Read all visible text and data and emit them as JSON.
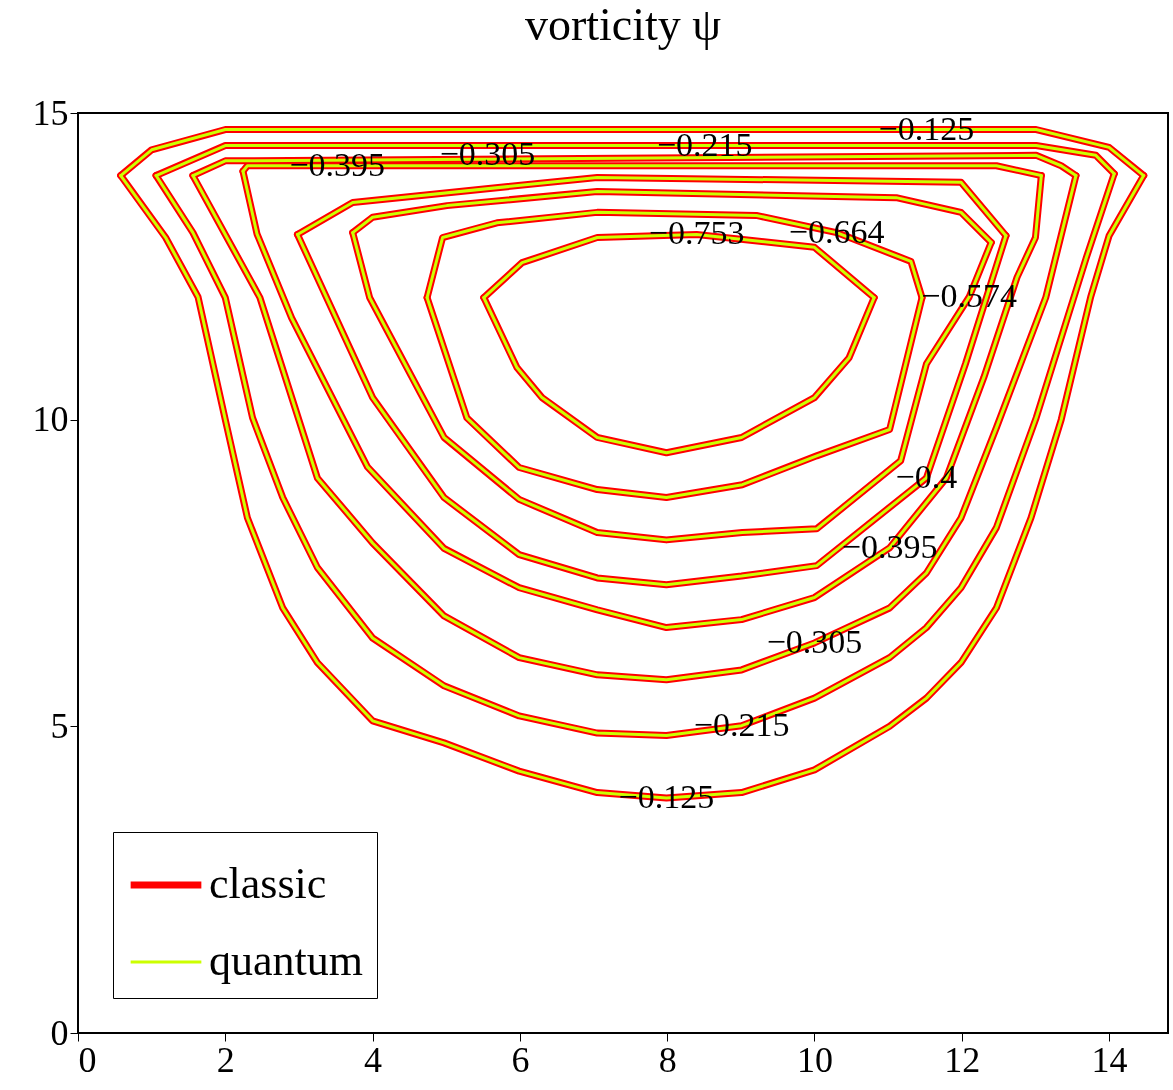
{
  "chart_data": {
    "type": "line",
    "title": "vorticity ψ",
    "xlim": [
      0,
      14.8
    ],
    "xticks": [
      0,
      2,
      4,
      6,
      8,
      10,
      12,
      14
    ],
    "ylim": [
      0,
      15
    ],
    "yticks": [
      0,
      5,
      10,
      15
    ],
    "grid": false,
    "legend": "bottom left",
    "line_style": "solid",
    "marker": "none",
    "series": [
      {
        "name": "classic",
        "color": "#ff0000",
        "x": [
          0.58,
          1.0,
          2.0,
          13.01,
          14.0,
          14.47
        ],
        "values": [
          13.98,
          14.4,
          14.73,
          14.73,
          14.44,
          13.98
        ]
      },
      {
        "color": "#ff0000",
        "x": [
          0.58,
          1.19,
          1.63,
          2.0,
          2.3,
          2.78,
          3.25,
          4.0,
          4.97,
          5.99,
          7.05,
          7.99,
          9.01,
          10.0,
          11.02,
          11.52,
          11.99,
          12.47,
          12.94,
          13.35,
          13.75,
          14.0,
          14.47
        ],
        "values": [
          13.98,
          12.97,
          12.0,
          10.0,
          8.4,
          6.93,
          6.04,
          5.09,
          4.73,
          4.27,
          3.92,
          3.83,
          3.92,
          4.29,
          5.0,
          5.46,
          6.04,
          6.93,
          8.4,
          10.0,
          12.0,
          13.0,
          13.98
        ]
      },
      {
        "color": "#ff0000",
        "x": [
          1.06,
          2.0,
          13.01,
          13.82,
          14.07
        ],
        "values": [
          13.98,
          14.47,
          14.47,
          14.31,
          14.01
        ]
      },
      {
        "color": "#ff0000",
        "x": [
          1.06,
          1.56,
          2.0,
          2.37,
          2.78,
          3.25,
          4.0,
          4.97,
          5.99,
          7.05,
          7.99,
          9.01,
          10.0,
          11.02,
          11.52,
          11.99,
          12.47,
          13.01,
          13.69,
          14.07
        ],
        "values": [
          13.98,
          13.05,
          11.99,
          10.03,
          8.73,
          7.59,
          6.44,
          5.66,
          5.17,
          4.89,
          4.85,
          5.01,
          5.46,
          6.12,
          6.61,
          7.26,
          8.24,
          10.03,
          12.64,
          14.01
        ]
      },
      {
        "color": "#ff0000",
        "x": [
          1.56,
          2.0,
          13.01,
          13.35,
          13.55
        ],
        "values": [
          13.98,
          14.22,
          14.31,
          14.14,
          13.98
        ]
      },
      {
        "color": "#ff0000",
        "x": [
          1.56,
          2.47,
          3.25,
          4.0,
          4.97,
          5.99,
          7.05,
          7.99,
          9.01,
          10.0,
          11.02,
          11.52,
          11.99,
          12.47,
          13.14,
          13.55
        ],
        "values": [
          13.98,
          11.99,
          9.05,
          7.99,
          6.8,
          6.12,
          5.84,
          5.76,
          5.92,
          6.36,
          6.93,
          7.5,
          8.4,
          9.87,
          11.99,
          13.98
        ]
      },
      {
        "color": "#ff0000",
        "x": [
          2.24,
          2.3,
          12.47,
          13.08
        ],
        "values": [
          14.05,
          14.14,
          14.14,
          13.98
        ]
      },
      {
        "color": "#ff0000",
        "x": [
          2.24,
          2.43,
          2.9,
          3.93,
          4.97,
          5.99,
          7.05,
          7.99,
          9.01,
          10.0,
          11.02,
          11.79,
          12.3,
          12.75,
          13.0,
          13.08
        ],
        "values": [
          14.05,
          13.03,
          11.66,
          9.23,
          7.9,
          7.26,
          6.9,
          6.61,
          6.74,
          7.1,
          7.91,
          9.05,
          10.69,
          12.32,
          12.97,
          13.98
        ]
      },
      {
        "color": "#ff0000",
        "x": [
          2.98,
          3.73,
          7.05,
          11.99,
          12.6
        ],
        "values": [
          13.02,
          13.54,
          13.95,
          13.87,
          13.0
        ]
      },
      {
        "color": "#ff0000",
        "x": [
          2.98,
          4.0,
          4.97,
          5.99,
          7.05,
          7.99,
          9.01,
          10.03,
          11.52,
          12.05,
          12.6
        ],
        "values": [
          13.02,
          10.36,
          8.73,
          7.8,
          7.42,
          7.31,
          7.45,
          7.62,
          9.05,
          10.91,
          13.0
        ]
      },
      {
        "color": "#ff0000",
        "x": [
          3.73,
          4.0,
          5.01,
          7.05,
          11.11,
          11.99,
          12.4
        ],
        "values": [
          13.05,
          13.3,
          13.49,
          13.72,
          13.62,
          13.38,
          12.89
        ]
      },
      {
        "color": "#ff0000",
        "x": [
          3.73,
          3.96,
          4.97,
          5.99,
          7.05,
          7.99,
          9.02,
          10.03,
          11.17,
          11.52,
          12.1,
          12.4
        ],
        "values": [
          13.05,
          11.99,
          9.71,
          8.7,
          8.16,
          8.04,
          8.16,
          8.22,
          9.33,
          10.91,
          12.0,
          12.89
        ]
      },
      {
        "color": "#ff0000",
        "x": [
          4.74,
          4.95,
          5.69,
          7.05,
          9.21,
          10.3,
          11.31,
          11.46
        ],
        "values": [
          11.99,
          12.97,
          13.21,
          13.38,
          13.33,
          13.05,
          12.58,
          11.99
        ]
      },
      {
        "color": "#ff0000",
        "x": [
          4.74,
          5.28,
          5.99,
          7.05,
          7.99,
          9.02,
          10.03,
          11.02,
          11.46
        ],
        "values": [
          11.99,
          10.03,
          9.22,
          8.86,
          8.73,
          8.94,
          9.41,
          9.84,
          11.99
        ]
      },
      {
        "color": "#ff0000",
        "x": [
          5.51,
          6.03,
          7.05,
          8.4,
          10.0,
          10.81
        ],
        "values": [
          11.99,
          12.56,
          12.97,
          13.02,
          12.81,
          11.99
        ]
      },
      {
        "color": "#ff0000",
        "x": [
          5.51,
          5.96,
          6.3,
          7.05,
          7.99,
          9.01,
          10.0,
          10.47,
          10.81
        ],
        "values": [
          11.99,
          10.85,
          10.36,
          9.71,
          9.46,
          9.71,
          10.36,
          11.01,
          11.99
        ]
      },
      {
        "name": "quantum",
        "color": "#ccff00",
        "x": [
          0.58,
          1.0,
          2.0,
          13.01,
          14.0,
          14.47
        ],
        "values": [
          13.98,
          14.4,
          14.73,
          14.73,
          14.44,
          13.98
        ]
      },
      {
        "color": "#ccff00",
        "x": [
          0.58,
          1.19,
          1.63,
          2.0,
          2.3,
          2.78,
          3.25,
          4.0,
          4.97,
          5.99,
          7.05,
          7.99,
          9.01,
          10.0,
          11.02,
          11.52,
          11.99,
          12.47,
          12.94,
          13.35,
          13.75,
          14.0,
          14.47
        ],
        "values": [
          13.98,
          12.97,
          12.0,
          10.0,
          8.4,
          6.93,
          6.04,
          5.09,
          4.73,
          4.27,
          3.92,
          3.83,
          3.92,
          4.29,
          5.0,
          5.46,
          6.04,
          6.93,
          8.4,
          10.0,
          12.0,
          13.0,
          13.98
        ]
      },
      {
        "color": "#ccff00",
        "x": [
          1.06,
          2.0,
          13.01,
          13.82,
          14.07
        ],
        "values": [
          13.98,
          14.47,
          14.47,
          14.31,
          14.01
        ]
      },
      {
        "color": "#ccff00",
        "x": [
          1.06,
          1.56,
          2.0,
          2.37,
          2.78,
          3.25,
          4.0,
          4.97,
          5.99,
          7.05,
          7.99,
          9.01,
          10.0,
          11.02,
          11.52,
          11.99,
          12.47,
          13.01,
          13.69,
          14.07
        ],
        "values": [
          13.98,
          13.05,
          11.99,
          10.03,
          8.73,
          7.59,
          6.44,
          5.66,
          5.17,
          4.89,
          4.85,
          5.01,
          5.46,
          6.12,
          6.61,
          7.26,
          8.24,
          10.03,
          12.64,
          14.01
        ]
      },
      {
        "color": "#ccff00",
        "x": [
          1.56,
          2.0,
          13.01,
          13.35,
          13.55
        ],
        "values": [
          13.98,
          14.22,
          14.31,
          14.14,
          13.98
        ]
      },
      {
        "color": "#ccff00",
        "x": [
          1.56,
          2.47,
          3.25,
          4.0,
          4.97,
          5.99,
          7.05,
          7.99,
          9.01,
          10.0,
          11.02,
          11.52,
          11.99,
          12.47,
          13.14,
          13.55
        ],
        "values": [
          13.98,
          11.99,
          9.05,
          7.99,
          6.8,
          6.12,
          5.84,
          5.76,
          5.92,
          6.36,
          6.93,
          7.5,
          8.4,
          9.87,
          11.99,
          13.98
        ]
      },
      {
        "color": "#ccff00",
        "x": [
          2.24,
          2.3,
          12.47,
          13.08
        ],
        "values": [
          14.05,
          14.14,
          14.14,
          13.98
        ]
      },
      {
        "color": "#ccff00",
        "x": [
          2.24,
          2.43,
          2.9,
          3.93,
          4.97,
          5.99,
          7.05,
          7.99,
          9.01,
          10.0,
          11.02,
          11.79,
          12.3,
          12.75,
          13.0,
          13.08
        ],
        "values": [
          14.05,
          13.03,
          11.66,
          9.23,
          7.9,
          7.26,
          6.9,
          6.61,
          6.74,
          7.1,
          7.91,
          9.05,
          10.69,
          12.32,
          12.97,
          13.98
        ]
      },
      {
        "color": "#ccff00",
        "x": [
          2.98,
          3.73,
          7.05,
          11.99,
          12.6
        ],
        "values": [
          13.02,
          13.54,
          13.95,
          13.87,
          13.0
        ]
      },
      {
        "color": "#ccff00",
        "x": [
          2.98,
          4.0,
          4.97,
          5.99,
          7.05,
          7.99,
          9.01,
          10.03,
          11.52,
          12.05,
          12.6
        ],
        "values": [
          13.02,
          10.36,
          8.73,
          7.8,
          7.42,
          7.31,
          7.45,
          7.62,
          9.05,
          10.91,
          13.0
        ]
      },
      {
        "color": "#ccff00",
        "x": [
          3.73,
          4.0,
          5.01,
          7.05,
          11.11,
          11.99,
          12.4
        ],
        "values": [
          13.05,
          13.3,
          13.49,
          13.72,
          13.62,
          13.38,
          12.89
        ]
      },
      {
        "color": "#ccff00",
        "x": [
          3.73,
          3.96,
          4.97,
          5.99,
          7.05,
          7.99,
          9.02,
          10.03,
          11.17,
          11.52,
          12.1,
          12.4
        ],
        "values": [
          13.05,
          11.99,
          9.71,
          8.7,
          8.16,
          8.04,
          8.16,
          8.22,
          9.33,
          10.91,
          12.0,
          12.89
        ]
      },
      {
        "color": "#ccff00",
        "x": [
          4.74,
          4.95,
          5.69,
          7.05,
          9.21,
          10.3,
          11.31,
          11.46
        ],
        "values": [
          11.99,
          12.97,
          13.21,
          13.38,
          13.33,
          13.05,
          12.58,
          11.99
        ]
      },
      {
        "color": "#ccff00",
        "x": [
          4.74,
          5.28,
          5.99,
          7.05,
          7.99,
          9.02,
          10.03,
          11.02,
          11.46
        ],
        "values": [
          11.99,
          10.03,
          9.22,
          8.86,
          8.73,
          8.94,
          9.41,
          9.84,
          11.99
        ]
      },
      {
        "color": "#ccff00",
        "x": [
          5.51,
          6.03,
          7.05,
          8.4,
          10.0,
          10.81
        ],
        "values": [
          11.99,
          12.56,
          12.97,
          13.02,
          12.81,
          11.99
        ]
      },
      {
        "color": "#ccff00",
        "x": [
          5.51,
          5.96,
          6.3,
          7.05,
          7.99,
          9.01,
          10.0,
          10.47,
          10.81
        ],
        "values": [
          11.99,
          10.85,
          10.36,
          9.71,
          9.46,
          9.71,
          10.36,
          11.01,
          11.99
        ]
      }
    ],
    "annotations": [
      {
        "text": "−0.125",
        "x": 7.99,
        "y": 3.83
      },
      {
        "text": "−0.215",
        "x": 9.01,
        "y": 5.01
      },
      {
        "text": "−0.305",
        "x": 10.0,
        "y": 6.36
      },
      {
        "text": "−0.395",
        "x": 11.02,
        "y": 7.91
      },
      {
        "text": "−0.4",
        "x": 11.52,
        "y": 9.05
      },
      {
        "text": "−0.574",
        "x": 12.1,
        "y": 12.0
      },
      {
        "text": "−0.664",
        "x": 10.3,
        "y": 13.05
      },
      {
        "text": "−0.753",
        "x": 8.4,
        "y": 13.02
      },
      {
        "text": "−0.395",
        "x": 3.52,
        "y": 14.14
      },
      {
        "text": "−0.305",
        "x": 5.56,
        "y": 14.31
      },
      {
        "text": "−0.215",
        "x": 8.51,
        "y": 14.47
      },
      {
        "text": "−0.125",
        "x": 11.52,
        "y": 14.73
      }
    ]
  }
}
